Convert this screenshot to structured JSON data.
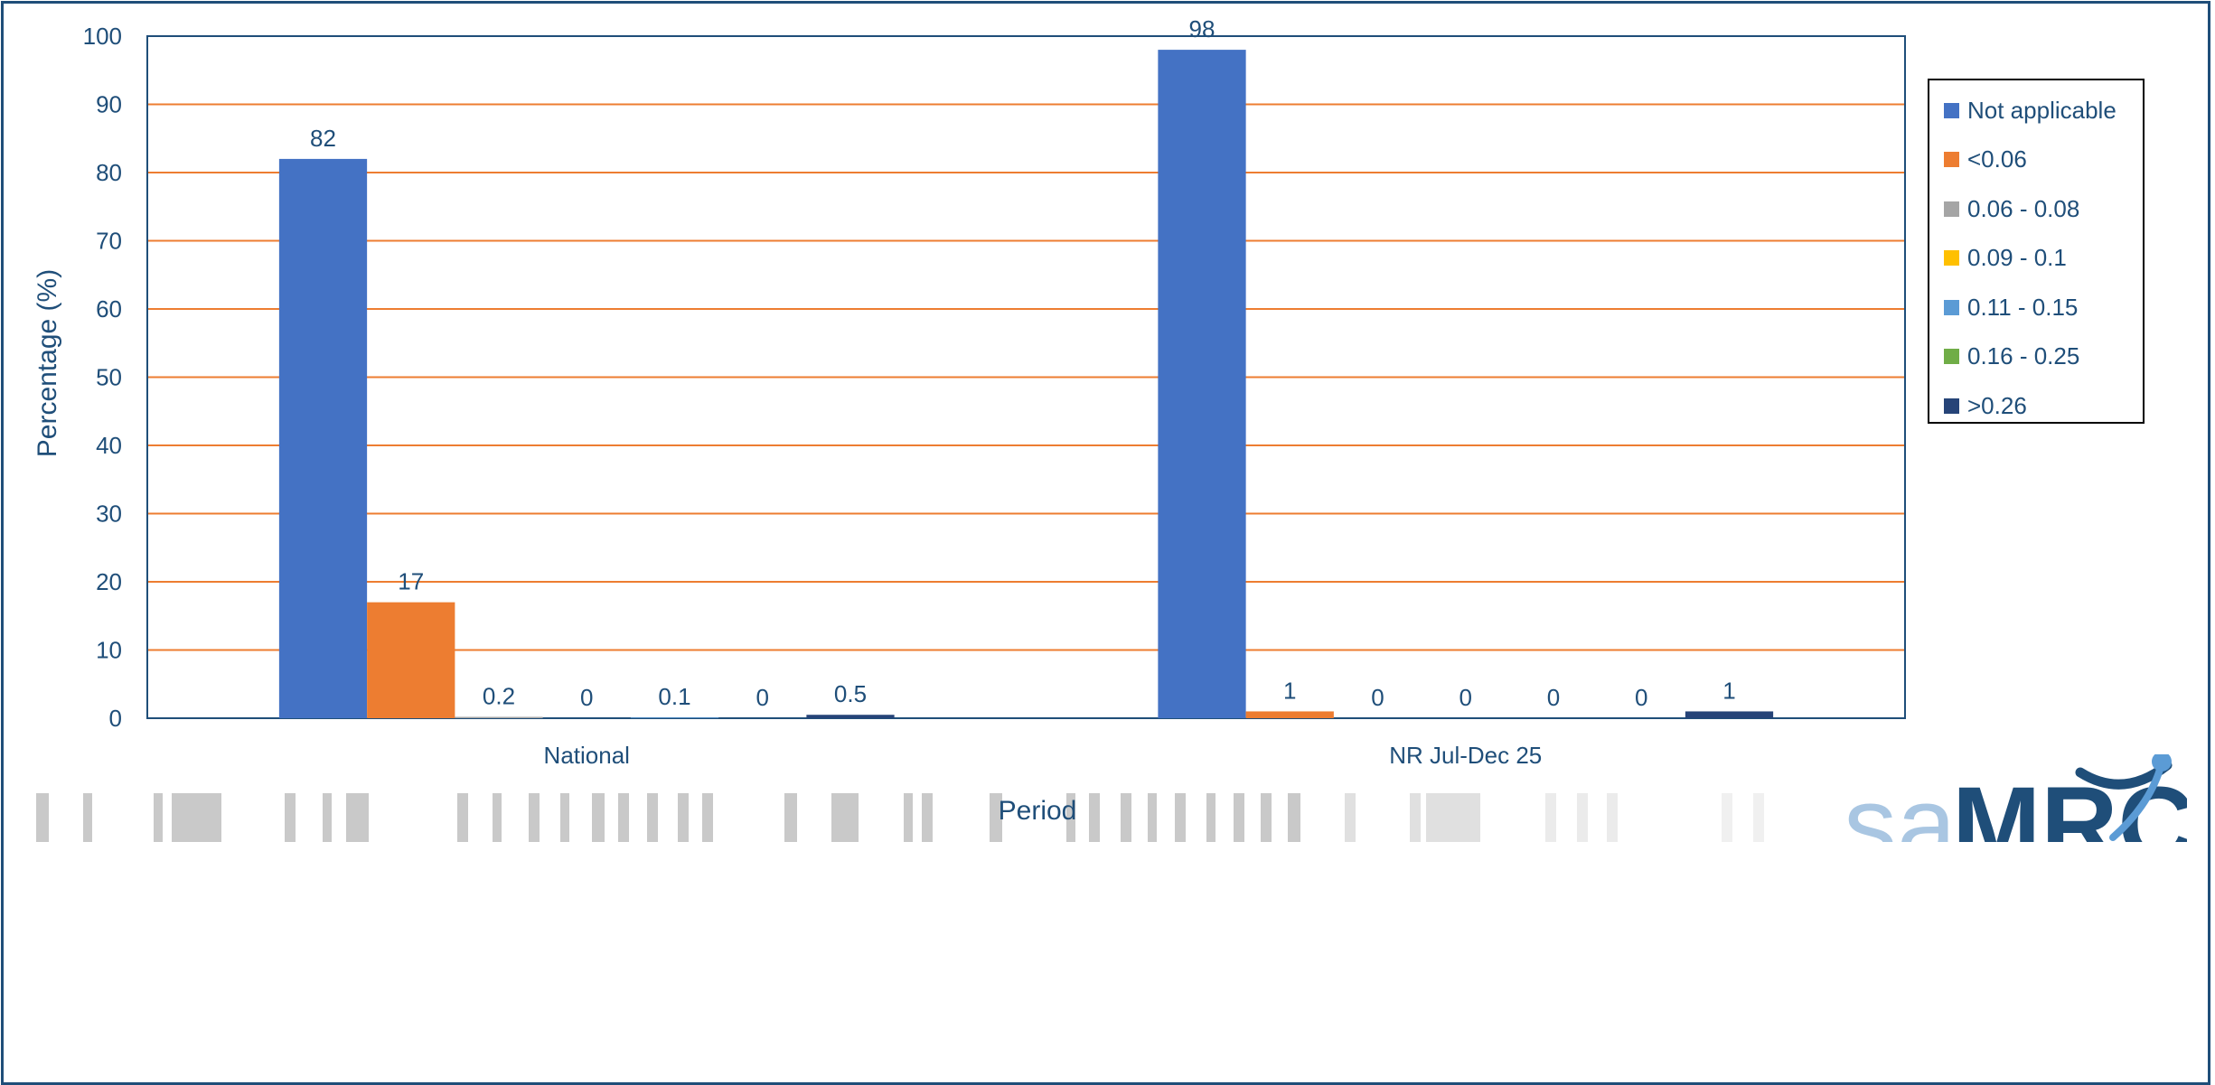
{
  "chart_data": {
    "type": "bar",
    "categories": [
      "National",
      "NR Jul-Dec 25"
    ],
    "series": [
      {
        "name": "Not applicable",
        "color": "#4472c4",
        "values": [
          82,
          98
        ],
        "labels": [
          "82",
          "98"
        ]
      },
      {
        "name": "<0.06",
        "color": "#ed7d31",
        "values": [
          17,
          1
        ],
        "labels": [
          "17",
          "1"
        ]
      },
      {
        "name": "0.06 - 0.08",
        "color": "#a5a5a5",
        "values": [
          0.2,
          0
        ],
        "labels": [
          "0.2",
          "0"
        ]
      },
      {
        "name": "0.09 - 0.1",
        "color": "#ffc000",
        "values": [
          0,
          0
        ],
        "labels": [
          "0",
          "0"
        ]
      },
      {
        "name": "0.11 - 0.15",
        "color": "#5b9bd5",
        "values": [
          0.1,
          0
        ],
        "labels": [
          "0.1",
          "0"
        ]
      },
      {
        "name": "0.16 - 0.25",
        "color": "#70ad47",
        "values": [
          0,
          0
        ],
        "labels": [
          "0",
          "0"
        ]
      },
      {
        "name": ">0.26",
        "color": "#264478",
        "values": [
          0.5,
          1
        ],
        "labels": [
          "0.5",
          "1"
        ]
      }
    ],
    "xlabel": "Period",
    "ylabel": "Percentage (%)",
    "ylim": [
      0,
      100
    ],
    "yticks": [
      "0",
      "10",
      "20",
      "30",
      "40",
      "50",
      "60",
      "70",
      "80",
      "90",
      "100"
    ],
    "grid": true,
    "grid_color": "#ed7d31",
    "legend_position": "right"
  },
  "logo": {
    "text_light": "sa",
    "text_bold": "MRC"
  },
  "colors": {
    "text": "#1f4e79",
    "frame": "#1f4e79",
    "logo_light": "#a9c6e2",
    "logo_dark": "#1f4e79"
  }
}
